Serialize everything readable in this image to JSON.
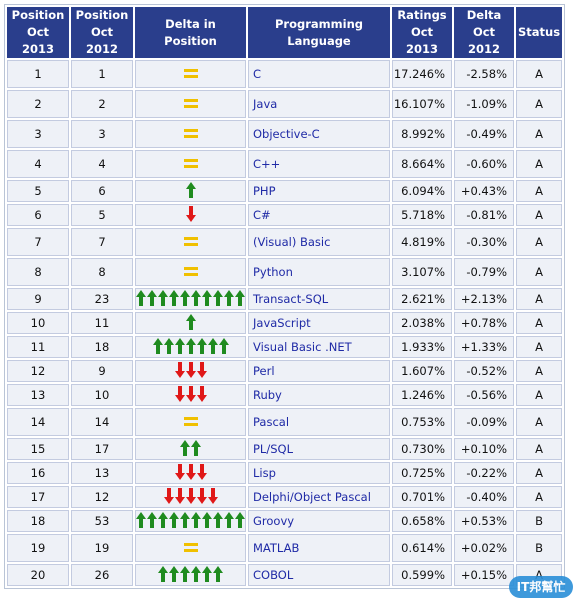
{
  "headers": {
    "pos2013": [
      "Position",
      "Oct 2013"
    ],
    "pos2012": [
      "Position",
      "Oct 2012"
    ],
    "delta_pos": "Delta in Position",
    "language": "Programming Language",
    "ratings": [
      "Ratings",
      "Oct 2013"
    ],
    "delta": [
      "Delta",
      "Oct 2012"
    ],
    "status": "Status"
  },
  "rows": [
    {
      "pos2013": "1",
      "pos2012": "1",
      "change": {
        "dir": "same",
        "count": 1
      },
      "language": "C",
      "rating": "17.246%",
      "delta": "-2.58%",
      "status": "A"
    },
    {
      "pos2013": "2",
      "pos2012": "2",
      "change": {
        "dir": "same",
        "count": 1
      },
      "language": "Java",
      "rating": "16.107%",
      "delta": "-1.09%",
      "status": "A"
    },
    {
      "pos2013": "3",
      "pos2012": "3",
      "change": {
        "dir": "same",
        "count": 1
      },
      "language": "Objective-C",
      "rating": "8.992%",
      "delta": "-0.49%",
      "status": "A"
    },
    {
      "pos2013": "4",
      "pos2012": "4",
      "change": {
        "dir": "same",
        "count": 1
      },
      "language": "C++",
      "rating": "8.664%",
      "delta": "-0.60%",
      "status": "A"
    },
    {
      "pos2013": "5",
      "pos2012": "6",
      "change": {
        "dir": "up",
        "count": 1
      },
      "language": "PHP",
      "rating": "6.094%",
      "delta": "+0.43%",
      "status": "A"
    },
    {
      "pos2013": "6",
      "pos2012": "5",
      "change": {
        "dir": "down",
        "count": 1
      },
      "language": "C#",
      "rating": "5.718%",
      "delta": "-0.81%",
      "status": "A"
    },
    {
      "pos2013": "7",
      "pos2012": "7",
      "change": {
        "dir": "same",
        "count": 1
      },
      "language": "(Visual) Basic",
      "rating": "4.819%",
      "delta": "-0.30%",
      "status": "A"
    },
    {
      "pos2013": "8",
      "pos2012": "8",
      "change": {
        "dir": "same",
        "count": 1
      },
      "language": "Python",
      "rating": "3.107%",
      "delta": "-0.79%",
      "status": "A"
    },
    {
      "pos2013": "9",
      "pos2012": "23",
      "change": {
        "dir": "up",
        "count": 10
      },
      "language": "Transact-SQL",
      "rating": "2.621%",
      "delta": "+2.13%",
      "status": "A"
    },
    {
      "pos2013": "10",
      "pos2012": "11",
      "change": {
        "dir": "up",
        "count": 1
      },
      "language": "JavaScript",
      "rating": "2.038%",
      "delta": "+0.78%",
      "status": "A"
    },
    {
      "pos2013": "11",
      "pos2012": "18",
      "change": {
        "dir": "up",
        "count": 7
      },
      "language": "Visual Basic .NET",
      "rating": "1.933%",
      "delta": "+1.33%",
      "status": "A"
    },
    {
      "pos2013": "12",
      "pos2012": "9",
      "change": {
        "dir": "down",
        "count": 3
      },
      "language": "Perl",
      "rating": "1.607%",
      "delta": "-0.52%",
      "status": "A"
    },
    {
      "pos2013": "13",
      "pos2012": "10",
      "change": {
        "dir": "down",
        "count": 3
      },
      "language": "Ruby",
      "rating": "1.246%",
      "delta": "-0.56%",
      "status": "A"
    },
    {
      "pos2013": "14",
      "pos2012": "14",
      "change": {
        "dir": "same",
        "count": 1
      },
      "language": "Pascal",
      "rating": "0.753%",
      "delta": "-0.09%",
      "status": "A"
    },
    {
      "pos2013": "15",
      "pos2012": "17",
      "change": {
        "dir": "up",
        "count": 2
      },
      "language": "PL/SQL",
      "rating": "0.730%",
      "delta": "+0.10%",
      "status": "A"
    },
    {
      "pos2013": "16",
      "pos2012": "13",
      "change": {
        "dir": "down",
        "count": 3
      },
      "language": "Lisp",
      "rating": "0.725%",
      "delta": "-0.22%",
      "status": "A"
    },
    {
      "pos2013": "17",
      "pos2012": "12",
      "change": {
        "dir": "down",
        "count": 5
      },
      "language": "Delphi/Object Pascal",
      "rating": "0.701%",
      "delta": "-0.40%",
      "status": "A"
    },
    {
      "pos2013": "18",
      "pos2012": "53",
      "change": {
        "dir": "up",
        "count": 10
      },
      "language": "Groovy",
      "rating": "0.658%",
      "delta": "+0.53%",
      "status": "B"
    },
    {
      "pos2013": "19",
      "pos2012": "19",
      "change": {
        "dir": "same",
        "count": 1
      },
      "language": "MATLAB",
      "rating": "0.614%",
      "delta": "+0.02%",
      "status": "B"
    },
    {
      "pos2013": "20",
      "pos2012": "26",
      "change": {
        "dir": "up",
        "count": 6
      },
      "language": "COBOL",
      "rating": "0.599%",
      "delta": "+0.15%",
      "status": "A"
    }
  ],
  "colors": {
    "header_bg": "#2a3e8c",
    "cell_bg": "#eef1f7",
    "link": "#1f2aa6",
    "up": "#1f8b1f",
    "down": "#e01818",
    "same": "#f0c000"
  },
  "watermark": "IT邦幫忙"
}
